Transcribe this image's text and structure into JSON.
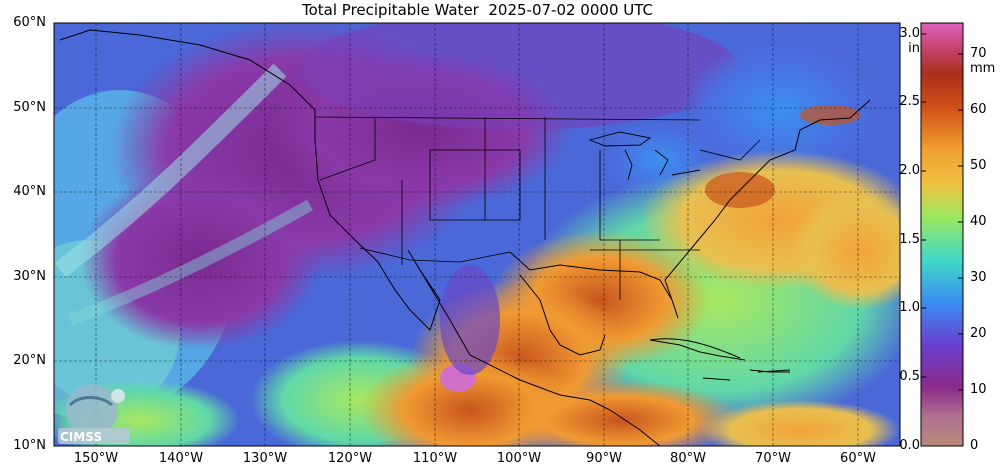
{
  "title": "Total Precipitable Water  2025-07-02 0000 UTC",
  "map": {
    "lat_labels": [
      "60°N",
      "50°N",
      "40°N",
      "30°N",
      "20°N",
      "10°N"
    ],
    "lon_labels": [
      "150°W",
      "140°W",
      "130°W",
      "120°W",
      "110°W",
      "100°W",
      "90°W",
      "80°W",
      "70°W",
      "60°W"
    ],
    "logo_text": "CIMSS"
  },
  "colorbar": {
    "inch_ticks": [
      "3.0",
      "2.5",
      "2.0",
      "1.5",
      "1.0",
      "0.5",
      "0.0"
    ],
    "inch_unit": "in",
    "mm_ticks": [
      "70",
      "60",
      "50",
      "40",
      "30",
      "20",
      "10",
      "0"
    ],
    "mm_unit": "mm",
    "colors": [
      "#b88a7a",
      "#8a2a8a",
      "#6a3fd0",
      "#3a8ef0",
      "#40d8c8",
      "#9ae860",
      "#f0a030",
      "#d05018",
      "#a8301a",
      "#e060c0"
    ]
  }
}
